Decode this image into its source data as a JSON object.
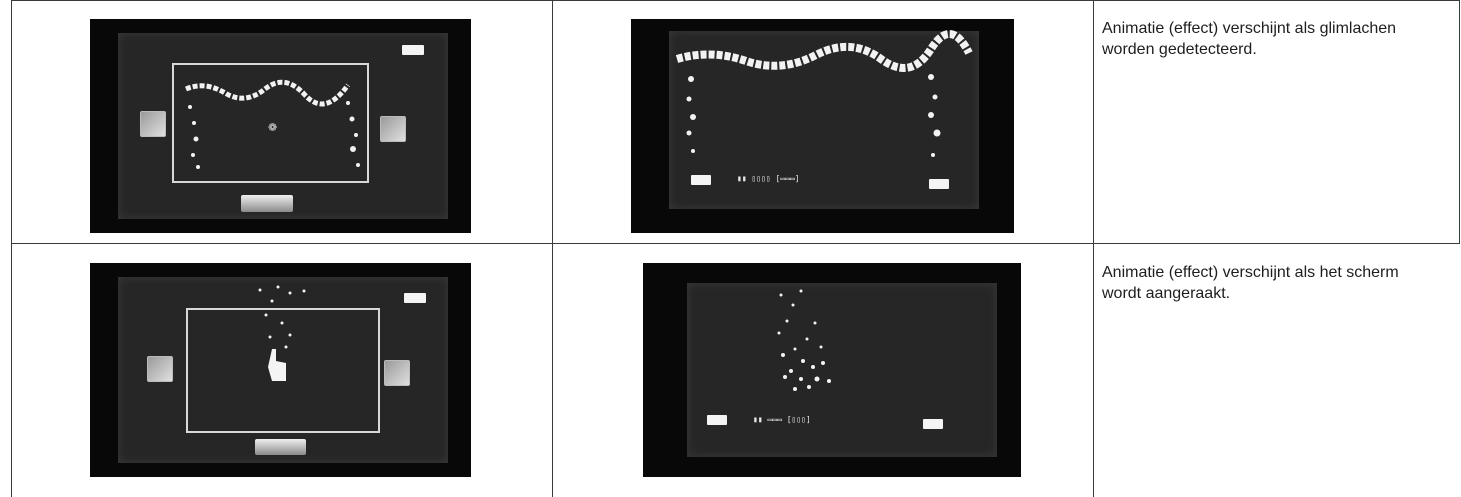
{
  "rows": [
    {
      "description": "Animatie (effect) verschijnt als glimlachen worden gedetecteerd.",
      "left_image": "smile-detect-setup-screen",
      "right_image": "smile-detect-recording-screen"
    },
    {
      "description": "Animatie (effect) verschijnt als het scherm wordt aangeraakt.",
      "left_image": "touch-setup-screen",
      "right_image": "touch-recording-screen"
    }
  ]
}
